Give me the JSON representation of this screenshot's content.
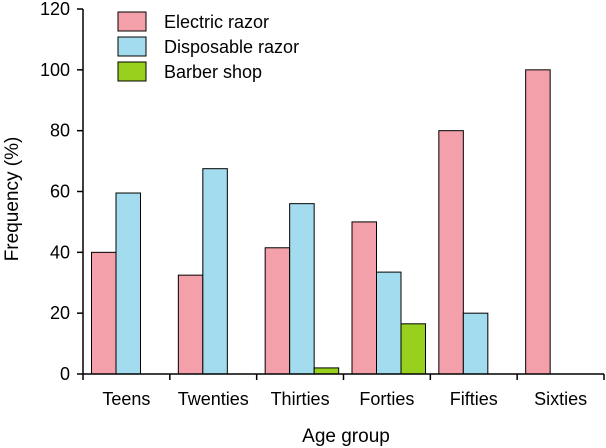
{
  "chart_data": {
    "type": "bar",
    "title": "",
    "xlabel": "Age group",
    "ylabel": "Frequency (%)",
    "ylim": [
      0,
      120
    ],
    "yticks": [
      0,
      20,
      40,
      60,
      80,
      100,
      120
    ],
    "grid": false,
    "legend_position": "top-left",
    "categories": [
      "Teens",
      "Twenties",
      "Thirties",
      "Forties",
      "Fifties",
      "Sixties"
    ],
    "series": [
      {
        "name": "Electric razor",
        "color": "#f4a0aa",
        "values": [
          40,
          32.5,
          41.5,
          50,
          80,
          100
        ]
      },
      {
        "name": "Disposable razor",
        "color": "#a3dcee",
        "values": [
          59.5,
          67.5,
          56,
          33.5,
          20,
          0
        ]
      },
      {
        "name": "Barber shop",
        "color": "#97d01d",
        "values": [
          0,
          0,
          2,
          16.5,
          0,
          0
        ]
      }
    ]
  }
}
